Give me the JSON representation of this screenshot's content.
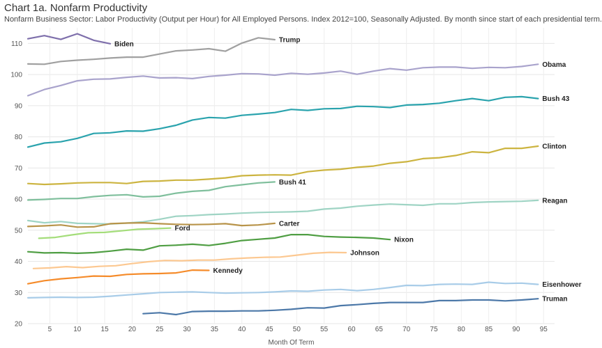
{
  "header": {
    "title": "Chart 1a. Nonfarm Productivity",
    "subtitle": "Nonfarm Business Sector: Labor Productivity (Output per Hour) for All Employed Persons. Index 2012=100, Seasonally Adjusted. By month since start of each presidential term."
  },
  "chart_data": {
    "type": "line",
    "title": "Chart 1a. Nonfarm Productivity",
    "subtitle": "Nonfarm Business Sector: Labor Productivity (Output per Hour) for All Employed Persons. Index 2012=100, Seasonally Adjusted. By month since start of each presidential term.",
    "xlabel": "Month Of Term",
    "ylabel": "",
    "xlim": [
      1,
      97
    ],
    "ylim": [
      20,
      115
    ],
    "xticks": [
      5,
      10,
      15,
      20,
      25,
      30,
      35,
      40,
      45,
      50,
      55,
      60,
      65,
      70,
      75,
      80,
      85,
      90,
      95
    ],
    "yticks": [
      20,
      30,
      40,
      50,
      60,
      70,
      80,
      90,
      100,
      110
    ],
    "grid": true,
    "legend": "direct labels at line ends",
    "series": [
      {
        "name": "Biden",
        "color": "#7e6fab",
        "x": [
          1,
          4,
          7,
          10,
          13,
          16
        ],
        "y": [
          111.5,
          112.5,
          111.3,
          113.1,
          111.0,
          109.9
        ]
      },
      {
        "name": "Trump",
        "color": "#a0a0a0",
        "x": [
          1,
          4,
          7,
          10,
          13,
          16,
          19,
          22,
          25,
          28,
          31,
          34,
          37,
          40,
          43,
          46
        ],
        "y": [
          103.4,
          103.3,
          104.2,
          104.6,
          104.9,
          105.3,
          105.6,
          105.6,
          106.6,
          107.6,
          107.9,
          108.3,
          107.5,
          110.1,
          111.8,
          111.2
        ]
      },
      {
        "name": "Obama",
        "color": "#a9a3cc",
        "x": [
          1,
          4,
          7,
          10,
          13,
          16,
          19,
          22,
          25,
          28,
          31,
          34,
          37,
          40,
          43,
          46,
          49,
          52,
          55,
          58,
          61,
          64,
          67,
          70,
          73,
          76,
          79,
          82,
          85,
          88,
          91,
          94
        ],
        "y": [
          93.2,
          95.2,
          96.5,
          98.0,
          98.5,
          98.6,
          99.1,
          99.5,
          98.9,
          99.0,
          98.7,
          99.4,
          99.8,
          100.3,
          100.2,
          99.8,
          100.4,
          100.1,
          100.5,
          101.1,
          100.1,
          101.1,
          101.9,
          101.4,
          102.2,
          102.4,
          102.4,
          102.0,
          102.3,
          102.2,
          102.6,
          103.3
        ]
      },
      {
        "name": "Bush 43",
        "color": "#2aa3ad",
        "x": [
          1,
          4,
          7,
          10,
          13,
          16,
          19,
          22,
          25,
          28,
          31,
          34,
          37,
          40,
          43,
          46,
          49,
          52,
          55,
          58,
          61,
          64,
          67,
          70,
          73,
          76,
          79,
          82,
          85,
          88,
          91,
          94
        ],
        "y": [
          76.7,
          78.0,
          78.4,
          79.5,
          81.1,
          81.3,
          81.9,
          81.8,
          82.6,
          83.7,
          85.4,
          86.2,
          86.0,
          86.9,
          87.3,
          87.8,
          88.8,
          88.5,
          89.0,
          89.1,
          89.8,
          89.7,
          89.4,
          90.2,
          90.4,
          90.8,
          91.6,
          92.3,
          91.6,
          92.7,
          92.9,
          92.3
        ]
      },
      {
        "name": "Clinton",
        "color": "#ccb440",
        "x": [
          1,
          4,
          7,
          10,
          13,
          16,
          19,
          22,
          25,
          28,
          31,
          34,
          37,
          40,
          43,
          46,
          49,
          52,
          55,
          58,
          61,
          64,
          67,
          70,
          73,
          76,
          79,
          82,
          85,
          88,
          91,
          94
        ],
        "y": [
          65.0,
          64.7,
          64.9,
          65.2,
          65.3,
          65.3,
          65.0,
          65.7,
          65.8,
          66.1,
          66.1,
          66.4,
          66.8,
          67.5,
          67.7,
          67.8,
          67.7,
          68.8,
          69.3,
          69.6,
          70.2,
          70.6,
          71.5,
          72.0,
          73.0,
          73.3,
          74.0,
          75.2,
          74.9,
          76.3,
          76.3,
          77.0
        ]
      },
      {
        "name": "Bush 41",
        "color": "#7fbf9c",
        "x": [
          1,
          4,
          7,
          10,
          13,
          16,
          19,
          22,
          25,
          28,
          31,
          34,
          37,
          40,
          43,
          46
        ],
        "y": [
          59.7,
          59.9,
          60.2,
          60.2,
          60.8,
          61.2,
          61.4,
          60.7,
          60.9,
          61.9,
          62.5,
          62.8,
          64.0,
          64.6,
          65.2,
          65.5
        ]
      },
      {
        "name": "Reagan",
        "color": "#9fd4c4",
        "x": [
          1,
          4,
          7,
          10,
          13,
          16,
          19,
          22,
          25,
          28,
          31,
          34,
          37,
          40,
          43,
          46,
          49,
          52,
          55,
          58,
          61,
          64,
          67,
          70,
          73,
          76,
          79,
          82,
          85,
          88,
          91,
          94
        ],
        "y": [
          53.1,
          52.4,
          52.8,
          52.2,
          52.1,
          52.0,
          52.3,
          52.7,
          53.5,
          54.5,
          54.7,
          55.0,
          55.2,
          55.5,
          55.7,
          55.8,
          55.9,
          56.1,
          56.8,
          57.1,
          57.7,
          58.1,
          58.4,
          58.2,
          58.0,
          58.5,
          58.5,
          58.9,
          59.1,
          59.2,
          59.3,
          59.6
        ]
      },
      {
        "name": "Carter",
        "color": "#b8944a",
        "x": [
          1,
          4,
          7,
          10,
          13,
          16,
          19,
          22,
          25,
          28,
          31,
          34,
          37,
          40,
          43,
          46
        ],
        "y": [
          51.2,
          51.4,
          51.7,
          51.0,
          51.1,
          52.1,
          52.3,
          52.4,
          52.1,
          51.9,
          51.8,
          51.9,
          52.1,
          51.5,
          51.7,
          52.2
        ]
      },
      {
        "name": "Ford",
        "color": "#a4dd7a",
        "x": [
          3,
          6,
          9,
          12,
          15,
          18,
          21,
          24,
          27
        ],
        "y": [
          47.4,
          47.7,
          48.5,
          49.2,
          49.3,
          49.8,
          50.3,
          50.5,
          50.7
        ]
      },
      {
        "name": "Nixon",
        "color": "#4f9e43",
        "x": [
          1,
          4,
          7,
          10,
          13,
          16,
          19,
          22,
          25,
          28,
          31,
          34,
          37,
          40,
          43,
          46,
          49,
          52,
          55,
          58,
          61,
          64,
          67
        ],
        "y": [
          43.1,
          42.7,
          42.8,
          42.6,
          42.8,
          43.3,
          43.9,
          43.6,
          45.0,
          45.2,
          45.5,
          45.1,
          45.8,
          46.7,
          47.1,
          47.5,
          48.6,
          48.6,
          48.0,
          47.8,
          47.7,
          47.5,
          47.0
        ]
      },
      {
        "name": "Johnson",
        "color": "#fcc891",
        "x": [
          2,
          5,
          8,
          11,
          14,
          17,
          20,
          23,
          26,
          29,
          32,
          35,
          38,
          41,
          44,
          47,
          50,
          53,
          56,
          59
        ],
        "y": [
          37.7,
          37.9,
          38.3,
          38.0,
          38.4,
          38.6,
          39.3,
          39.9,
          40.3,
          40.2,
          40.4,
          40.4,
          40.8,
          41.1,
          41.3,
          41.4,
          42.0,
          42.6,
          42.9,
          42.8
        ]
      },
      {
        "name": "Kennedy",
        "color": "#f58b2a",
        "x": [
          1,
          4,
          7,
          10,
          13,
          16,
          19,
          22,
          25,
          28,
          31,
          34
        ],
        "y": [
          32.8,
          33.8,
          34.4,
          34.8,
          35.3,
          35.2,
          35.8,
          36.0,
          36.1,
          36.3,
          37.2,
          37.1
        ]
      },
      {
        "name": "Eisenhower",
        "color": "#a8cce8",
        "x": [
          1,
          4,
          7,
          10,
          13,
          16,
          19,
          22,
          25,
          28,
          31,
          34,
          37,
          40,
          43,
          46,
          49,
          52,
          55,
          58,
          61,
          64,
          67,
          70,
          73,
          76,
          79,
          82,
          85,
          88,
          91,
          94
        ],
        "y": [
          28.3,
          28.4,
          28.5,
          28.4,
          28.5,
          28.8,
          29.2,
          29.6,
          30.0,
          30.1,
          30.2,
          30.0,
          29.8,
          29.9,
          30.0,
          30.2,
          30.5,
          30.4,
          30.8,
          31.0,
          30.6,
          31.0,
          31.6,
          32.3,
          32.2,
          32.6,
          32.7,
          32.6,
          33.3,
          32.9,
          33.0,
          32.6
        ]
      },
      {
        "name": "Truman",
        "color": "#4c78a8",
        "x": [
          22,
          25,
          28,
          31,
          34,
          37,
          40,
          43,
          46,
          49,
          52,
          55,
          58,
          61,
          64,
          67,
          70,
          73,
          76,
          79,
          82,
          85,
          88,
          91,
          94
        ],
        "y": [
          23.2,
          23.5,
          22.9,
          23.9,
          24.0,
          24.0,
          24.1,
          24.1,
          24.3,
          24.6,
          25.1,
          25.0,
          25.8,
          26.1,
          26.5,
          26.8,
          26.8,
          26.8,
          27.4,
          27.4,
          27.6,
          27.6,
          27.3,
          27.6,
          28.0
        ]
      }
    ]
  }
}
